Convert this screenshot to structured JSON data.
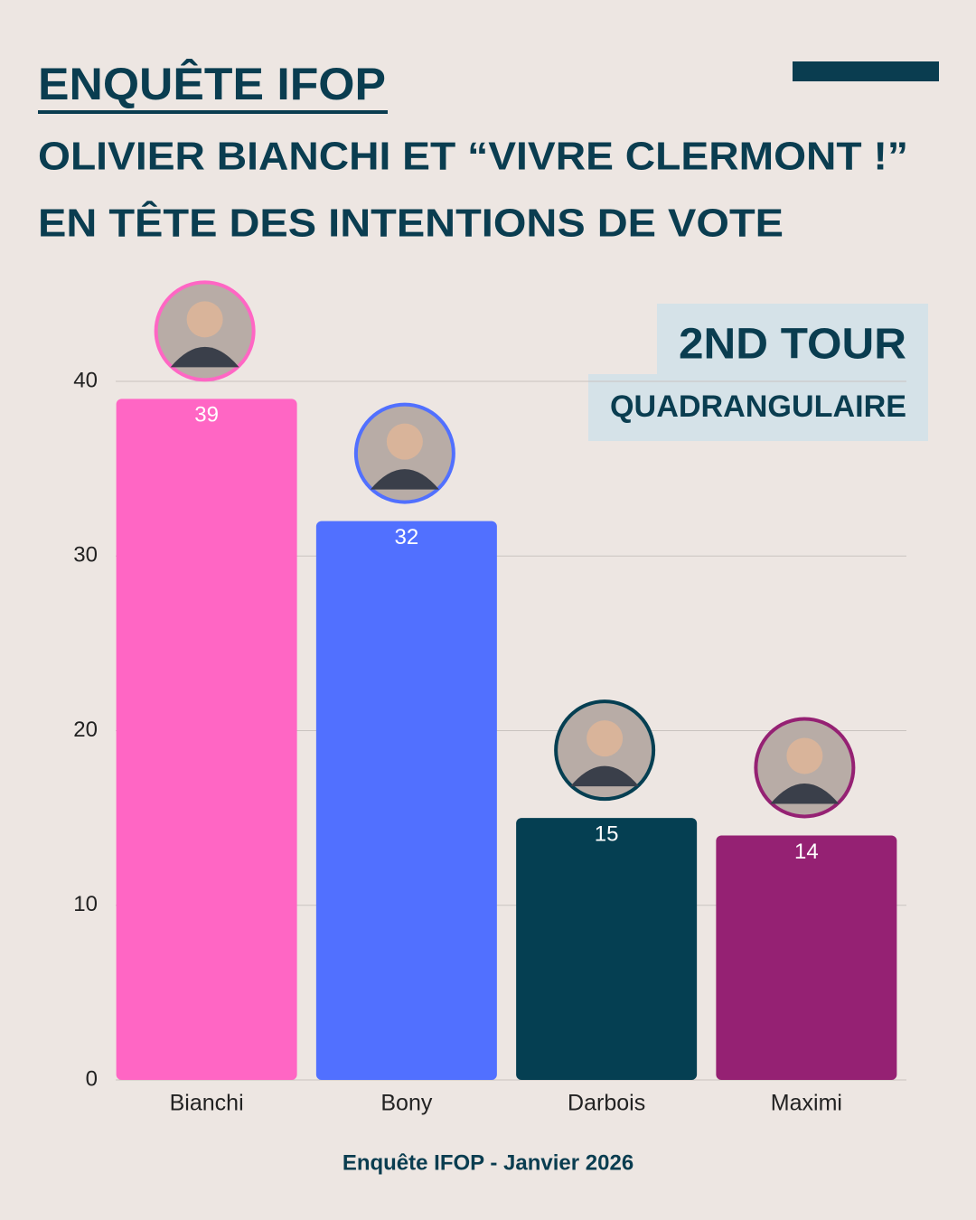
{
  "heading": "ENQUÊTE IFOP",
  "subtitle_lines": [
    "OLIVIER BIANCHI ET “VIVRE CLERMONT !”",
    "EN TÊTE DES INTENTIONS DE VOTE"
  ],
  "badge": {
    "title": "2ND TOUR",
    "subtitle": "QUADRANGULAIRE"
  },
  "footer": "Enquête IFOP - Janvier 2026",
  "chart_data": {
    "type": "bar",
    "categories": [
      "Bianchi",
      "Bony",
      "Darbois",
      "Maximi"
    ],
    "values": [
      39,
      32,
      15,
      14
    ],
    "colors": [
      "#ff66c4",
      "#5170ff",
      "#053f52",
      "#952173"
    ],
    "ylim": [
      0,
      40
    ],
    "yticks": [
      0,
      10,
      20,
      30,
      40
    ],
    "grid": true
  }
}
